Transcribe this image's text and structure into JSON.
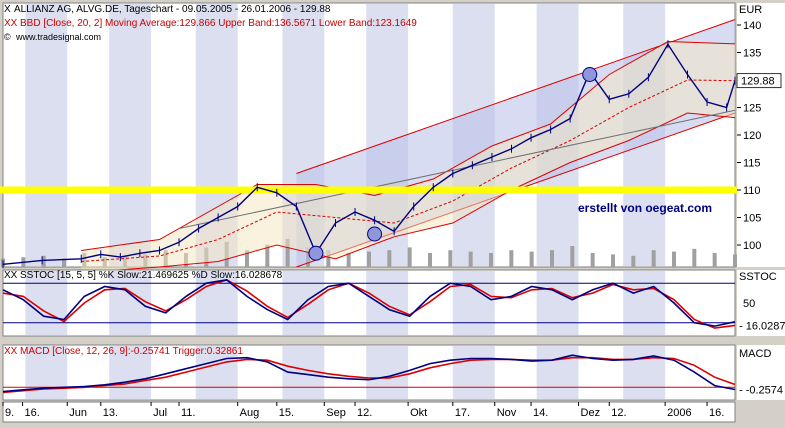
{
  "header": {
    "title": "ALLIANZ AG, ALVG.DE, Tageschart - 09.05.2005 - 26.01.2006 - 129.88",
    "bbd_label": "BBD [Close, 20, 2] Moving Average:129.866 Upper Band:136.5671 Lower Band:123.1649",
    "source": "www.tradesignal.com"
  },
  "watermark": "erstellt von oegeat.com",
  "colors": {
    "background": "#ffffff",
    "stripe": "#dcdff0",
    "price": "#000080",
    "band": "#dd0000",
    "highlight": "#ffff00",
    "channel_fill": "#b8bfe8",
    "trendline": "#707070"
  },
  "chart_data": [
    {
      "type": "line",
      "name": "price",
      "unit": "EUR",
      "last_value": "129.88",
      "y_ticks": [
        100,
        105,
        110,
        115,
        120,
        125,
        130,
        135,
        140
      ],
      "ylim": [
        96,
        144
      ],
      "x_labels": [
        "9.",
        "16.",
        "Jun",
        "13.",
        "Jul",
        "11.",
        "Aug",
        "15.",
        "Sep",
        "12.",
        "Okt",
        "17.",
        "Nov",
        "14.",
        "Dez",
        "12.",
        "2006",
        "16."
      ],
      "close": [
        {
          "d": "2005-05-09",
          "v": 96.5
        },
        {
          "d": "2005-05-23",
          "v": 97.2
        },
        {
          "d": "2005-06-06",
          "v": 97.5
        },
        {
          "d": "2005-06-13",
          "v": 98.3
        },
        {
          "d": "2005-06-20",
          "v": 97.8
        },
        {
          "d": "2005-06-27",
          "v": 98.5
        },
        {
          "d": "2005-07-04",
          "v": 99.0
        },
        {
          "d": "2005-07-11",
          "v": 100.5
        },
        {
          "d": "2005-07-18",
          "v": 103.0
        },
        {
          "d": "2005-07-25",
          "v": 105.0
        },
        {
          "d": "2005-08-01",
          "v": 107.0
        },
        {
          "d": "2005-08-08",
          "v": 110.5
        },
        {
          "d": "2005-08-15",
          "v": 109.5
        },
        {
          "d": "2005-08-22",
          "v": 107.0
        },
        {
          "d": "2005-08-29",
          "v": 98.5
        },
        {
          "d": "2005-09-05",
          "v": 104.0
        },
        {
          "d": "2005-09-12",
          "v": 106.0
        },
        {
          "d": "2005-09-19",
          "v": 104.5
        },
        {
          "d": "2005-09-26",
          "v": 102.5
        },
        {
          "d": "2005-10-03",
          "v": 107.0
        },
        {
          "d": "2005-10-10",
          "v": 110.5
        },
        {
          "d": "2005-10-17",
          "v": 113.0
        },
        {
          "d": "2005-10-24",
          "v": 114.5
        },
        {
          "d": "2005-10-31",
          "v": 116.0
        },
        {
          "d": "2005-11-07",
          "v": 117.5
        },
        {
          "d": "2005-11-14",
          "v": 119.5
        },
        {
          "d": "2005-11-21",
          "v": 121.0
        },
        {
          "d": "2005-11-28",
          "v": 123.0
        },
        {
          "d": "2005-12-05",
          "v": 131.5
        },
        {
          "d": "2005-12-12",
          "v": 126.5
        },
        {
          "d": "2005-12-19",
          "v": 127.5
        },
        {
          "d": "2005-12-26",
          "v": 130.5
        },
        {
          "d": "2006-01-02",
          "v": 136.5
        },
        {
          "d": "2006-01-09",
          "v": 131.0
        },
        {
          "d": "2006-01-16",
          "v": 126.0
        },
        {
          "d": "2006-01-23",
          "v": 125.0
        },
        {
          "d": "2006-01-26",
          "v": 129.88
        }
      ],
      "moving_average": [
        {
          "d": "2005-06-06",
          "v": 97.0
        },
        {
          "d": "2005-07-04",
          "v": 98.0
        },
        {
          "d": "2005-07-25",
          "v": 101.0
        },
        {
          "d": "2005-08-15",
          "v": 106.0
        },
        {
          "d": "2005-09-05",
          "v": 105.0
        },
        {
          "d": "2005-09-26",
          "v": 104.0
        },
        {
          "d": "2005-10-17",
          "v": 108.0
        },
        {
          "d": "2005-11-07",
          "v": 114.0
        },
        {
          "d": "2005-11-28",
          "v": 119.0
        },
        {
          "d": "2005-12-19",
          "v": 125.0
        },
        {
          "d": "2006-01-09",
          "v": 130.0
        },
        {
          "d": "2006-01-26",
          "v": 129.866
        }
      ],
      "upper_band": [
        {
          "d": "2005-06-06",
          "v": 99.0
        },
        {
          "d": "2005-07-04",
          "v": 101.0
        },
        {
          "d": "2005-07-25",
          "v": 107.0
        },
        {
          "d": "2005-08-08",
          "v": 111.0
        },
        {
          "d": "2005-08-29",
          "v": 111.0
        },
        {
          "d": "2005-09-19",
          "v": 109.0
        },
        {
          "d": "2005-10-10",
          "v": 112.0
        },
        {
          "d": "2005-10-31",
          "v": 118.0
        },
        {
          "d": "2005-11-21",
          "v": 122.0
        },
        {
          "d": "2005-12-12",
          "v": 131.0
        },
        {
          "d": "2006-01-02",
          "v": 137.0
        },
        {
          "d": "2006-01-26",
          "v": 136.5671
        }
      ],
      "lower_band": [
        {
          "d": "2005-06-06",
          "v": 95.0
        },
        {
          "d": "2005-07-04",
          "v": 96.0
        },
        {
          "d": "2005-07-25",
          "v": 97.0
        },
        {
          "d": "2005-08-15",
          "v": 100.0
        },
        {
          "d": "2005-09-05",
          "v": 97.5
        },
        {
          "d": "2005-09-26",
          "v": 101.5
        },
        {
          "d": "2005-10-17",
          "v": 104.0
        },
        {
          "d": "2005-11-07",
          "v": 110.0
        },
        {
          "d": "2005-11-28",
          "v": 115.0
        },
        {
          "d": "2005-12-19",
          "v": 119.0
        },
        {
          "d": "2006-01-09",
          "v": 124.0
        },
        {
          "d": "2006-01-26",
          "v": 123.1649
        }
      ],
      "horizontal_line": 110,
      "channel_upper": [
        {
          "d": "2005-08-22",
          "v": 113.0
        },
        {
          "d": "2006-01-26",
          "v": 141.0
        }
      ],
      "channel_lower": [
        {
          "d": "2005-08-22",
          "v": 96.0
        },
        {
          "d": "2006-01-26",
          "v": 124.0
        }
      ],
      "trendline": [
        {
          "d": "2005-07-11",
          "v": 103.0
        },
        {
          "d": "2006-01-26",
          "v": 124.5
        }
      ],
      "markers": [
        {
          "d": "2005-08-29",
          "v": 98.5
        },
        {
          "d": "2005-09-19",
          "v": 102.0
        },
        {
          "d": "2005-12-05",
          "v": 131.0
        }
      ],
      "volume_relative": [
        0.3,
        0.35,
        0.4,
        0.3,
        0.5,
        0.35,
        0.4,
        0.45,
        0.6,
        0.5,
        0.7,
        0.9,
        0.6,
        0.8,
        1.0,
        0.7,
        0.6,
        0.5,
        0.55,
        0.6,
        0.7,
        0.5,
        0.6,
        0.55,
        0.5,
        0.6,
        0.55,
        0.6,
        0.75,
        0.5,
        0.45,
        0.4,
        0.6,
        0.55,
        0.65,
        0.5,
        0.45
      ]
    },
    {
      "type": "line",
      "name": "SSTOC",
      "label": "SSTOC [15, 5, 5] %K Slow:21.469625 %D Slow:16.028678",
      "axis_label": "SSTOC",
      "last_value": "16.0287",
      "y_ticks": [
        50
      ],
      "ylim": [
        0,
        100
      ],
      "reference_lines": [
        20,
        80
      ],
      "k_slow": [
        70,
        55,
        30,
        25,
        60,
        75,
        70,
        45,
        35,
        60,
        80,
        85,
        60,
        40,
        25,
        55,
        75,
        80,
        60,
        40,
        30,
        60,
        80,
        75,
        55,
        60,
        75,
        70,
        55,
        70,
        80,
        65,
        75,
        50,
        20,
        15,
        21.5
      ],
      "d_slow": [
        65,
        60,
        38,
        22,
        50,
        70,
        72,
        52,
        38,
        55,
        75,
        85,
        68,
        45,
        28,
        48,
        70,
        80,
        65,
        45,
        32,
        52,
        75,
        78,
        60,
        58,
        70,
        72,
        58,
        65,
        78,
        70,
        72,
        55,
        25,
        12,
        16.0
      ]
    },
    {
      "type": "line",
      "name": "MACD",
      "label": "MACD [Close, 12, 26, 9]:-0.25741 Trigger:0.32861",
      "axis_label": "MACD",
      "last_value": "-0.2574",
      "ylim": [
        -1.5,
        5
      ],
      "zero_line": 0,
      "macd": [
        -0.5,
        -0.3,
        -0.1,
        0.0,
        0.1,
        0.3,
        0.6,
        1.0,
        1.6,
        2.2,
        2.8,
        3.4,
        3.5,
        3.0,
        1.8,
        1.5,
        1.2,
        1.0,
        0.9,
        1.3,
        2.0,
        2.8,
        3.2,
        3.4,
        3.4,
        3.3,
        3.1,
        3.2,
        3.8,
        3.4,
        3.2,
        3.3,
        3.7,
        3.2,
        1.8,
        0.2,
        -0.26
      ],
      "trigger": [
        -0.6,
        -0.4,
        -0.2,
        -0.1,
        0.0,
        0.2,
        0.4,
        0.8,
        1.2,
        1.8,
        2.4,
        3.0,
        3.3,
        3.2,
        2.5,
        2.0,
        1.6,
        1.3,
        1.1,
        1.1,
        1.6,
        2.3,
        2.8,
        3.2,
        3.3,
        3.3,
        3.2,
        3.2,
        3.5,
        3.5,
        3.3,
        3.3,
        3.5,
        3.4,
        2.6,
        1.2,
        0.33
      ]
    }
  ]
}
